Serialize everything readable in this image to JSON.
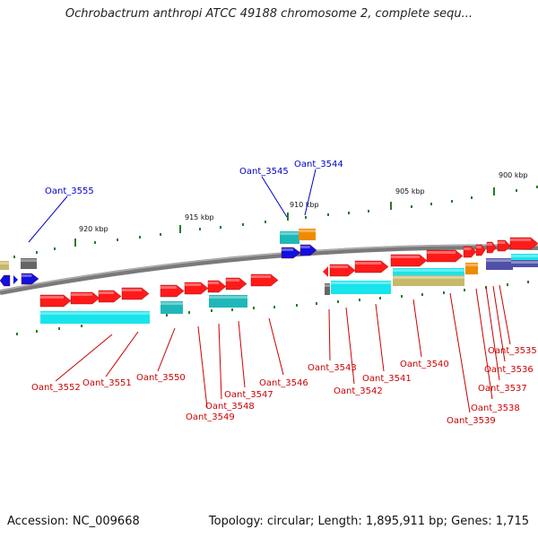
{
  "title": "Ochrobactrum anthropi ATCC 49188 chromosome 2, complete sequ...",
  "footer": {
    "accession": "Accession: NC_009668",
    "topology": "Topology: circular; Length: 1,895,911 bp; Genes: 1,715"
  },
  "scale_labels": [
    "920 kbp",
    "915 kbp",
    "910 kbp",
    "905 kbp",
    "900 kbp"
  ],
  "gene_labels_top": [
    "Oant_3555",
    "Oant_3545",
    "Oant_3544"
  ],
  "gene_labels_bottom": [
    "Oant_3552",
    "Oant_3551",
    "Oant_3550",
    "Oant_3549",
    "Oant_3548",
    "Oant_3547",
    "Oant_3546",
    "Oant_3543",
    "Oant_3542",
    "Oant_3541",
    "Oant_3540",
    "Oant_3539",
    "Oant_3538",
    "Oant_3537",
    "Oant_3536",
    "Oant_3535"
  ],
  "colors": {
    "forward_gene": "#ff1a1a",
    "cds": "#18e4ec",
    "teal": "#1fb8b8",
    "blue_gene": "#1010e0",
    "orange": "#f08a00",
    "khaki": "#c8b86a",
    "grey": "#666666",
    "purple": "#5050a8",
    "label_red": "#cc0000",
    "label_blue": "#0000cc",
    "tick_green": "#2a7a2a"
  }
}
